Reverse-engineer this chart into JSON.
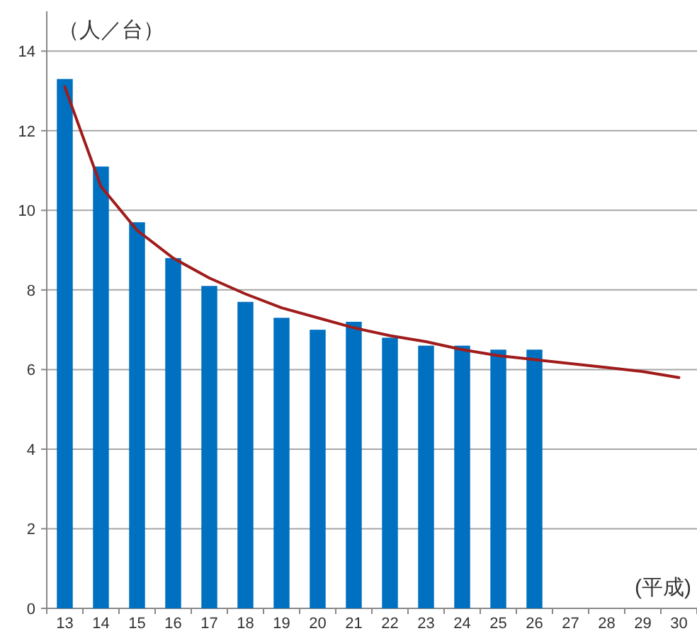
{
  "chart_data": {
    "type": "bar",
    "ylabel": "（人／台）",
    "xlabel": "(平成)",
    "categories": [
      "13",
      "14",
      "15",
      "16",
      "17",
      "18",
      "19",
      "20",
      "21",
      "22",
      "23",
      "24",
      "25",
      "26",
      "27",
      "28",
      "29",
      "30"
    ],
    "series": [
      {
        "color": "#0070c0",
        "values": [
          13.3,
          11.1,
          9.7,
          8.8,
          8.1,
          7.7,
          7.3,
          7.0,
          7.2,
          6.8,
          6.6,
          6.6,
          6.5,
          6.5,
          null,
          null,
          null,
          null
        ]
      },
      {
        "type": "line",
        "color": "#a01c1c",
        "values": [
          13.1,
          10.6,
          9.5,
          8.8,
          8.3,
          7.9,
          7.55,
          7.3,
          7.05,
          6.85,
          6.7,
          6.5,
          6.35,
          6.25,
          6.15,
          6.05,
          5.95,
          5.8
        ]
      }
    ],
    "ylim": [
      0,
      15
    ],
    "yticks": [
      0,
      2,
      4,
      6,
      8,
      10,
      12,
      14
    ],
    "grid": "y"
  }
}
